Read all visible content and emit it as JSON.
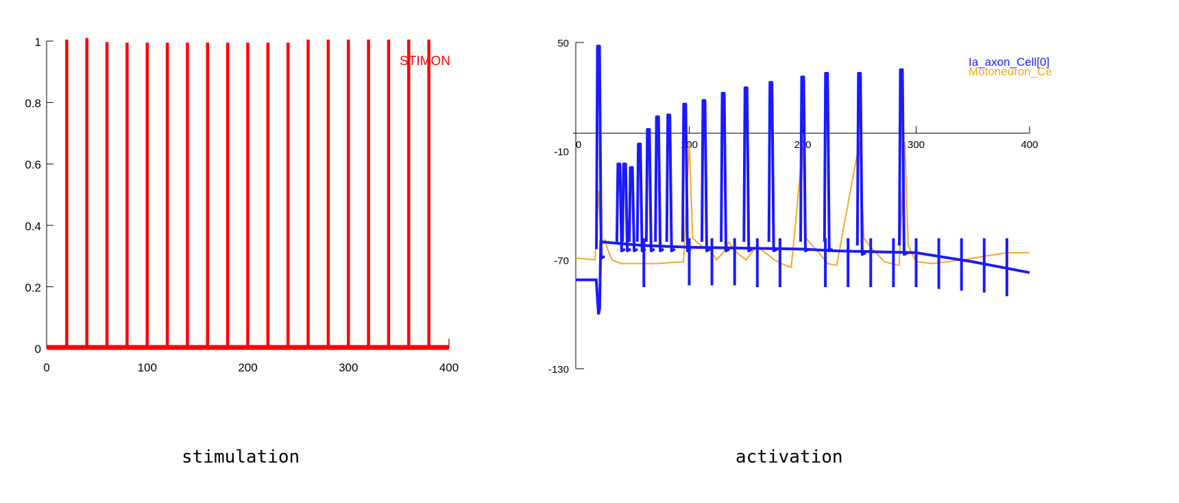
{
  "captions": {
    "left": "stimulation",
    "right": "activation"
  },
  "chart_data": [
    {
      "type": "line",
      "xlim": [
        0,
        400
      ],
      "ylim": [
        0,
        1
      ],
      "xticks": [
        0,
        100,
        200,
        300,
        400
      ],
      "xtick_labels": [
        "0",
        "100",
        "200",
        "300",
        "400"
      ],
      "yticks": [
        0,
        0.2,
        0.4,
        0.6,
        0.8,
        1
      ],
      "ytick_labels": [
        "0",
        "0.2",
        "0.4",
        "0.6",
        "0.8",
        "1"
      ],
      "grid": false,
      "legend": "top-right",
      "series": [
        {
          "name": "STIMON",
          "color": "#ff0000",
          "pulse_times": [
            20,
            40,
            60,
            80,
            100,
            120,
            140,
            160,
            180,
            200,
            220,
            240,
            260,
            280,
            300,
            320,
            340,
            360,
            380
          ],
          "pulse_heights": [
            1.005,
            1.01,
            0.997,
            0.995,
            0.995,
            0.995,
            0.995,
            0.995,
            0.995,
            0.995,
            0.995,
            0.995,
            1.005,
            1.005,
            1.005,
            1.005,
            1.005,
            1.005,
            1.005
          ]
        }
      ]
    },
    {
      "type": "line",
      "xlim": [
        0,
        400
      ],
      "ylim": [
        -130,
        50
      ],
      "xticks": [
        0,
        100,
        200,
        300,
        400
      ],
      "xtick_labels": [
        "0",
        "100",
        "200",
        "300",
        "400"
      ],
      "yticks": [
        50,
        -10,
        -70,
        -130
      ],
      "ytick_labels": [
        "50",
        "-10",
        "-70",
        "-130"
      ],
      "grid": false,
      "legend": "top-right",
      "series": [
        {
          "name": "Ia_axon_Cell[0]",
          "color": "#1a1aff",
          "baseline": [
            [
              0,
              -81
            ],
            [
              18,
              -81
            ],
            [
              20,
              -100
            ],
            [
              21,
              -97
            ],
            [
              22,
              -60
            ],
            [
              60,
              -62
            ],
            [
              100,
              -63
            ],
            [
              200,
              -64
            ],
            [
              230,
              -65
            ],
            [
              300,
              -66
            ],
            [
              350,
              -71
            ],
            [
              400,
              -77
            ]
          ],
          "big_spikes": [
            {
              "t": 20,
              "peak": 48,
              "trough": -68
            },
            {
              "t": 38,
              "peak": -17,
              "trough": -64
            },
            {
              "t": 43,
              "peak": -17,
              "trough": -64
            },
            {
              "t": 49,
              "peak": -19,
              "trough": -64
            },
            {
              "t": 56,
              "peak": -6,
              "trough": -64
            },
            {
              "t": 64,
              "peak": 2,
              "trough": -64
            },
            {
              "t": 72,
              "peak": 9,
              "trough": -64
            },
            {
              "t": 82,
              "peak": 10,
              "trough": -64
            },
            {
              "t": 96,
              "peak": 16,
              "trough": -64
            },
            {
              "t": 113,
              "peak": 18,
              "trough": -64
            },
            {
              "t": 130,
              "peak": 22,
              "trough": -64
            },
            {
              "t": 150,
              "peak": 25,
              "trough": -64
            },
            {
              "t": 172,
              "peak": 28,
              "trough": -64
            },
            {
              "t": 200,
              "peak": 31,
              "trough": -64
            },
            {
              "t": 221,
              "peak": 33,
              "trough": -64
            },
            {
              "t": 250,
              "peak": 33,
              "trough": -66
            },
            {
              "t": 287,
              "peak": 35,
              "trough": -66
            }
          ],
          "small_spikes": [
            {
              "t": 60,
              "top": -58,
              "bottom": -85
            },
            {
              "t": 100,
              "top": -58,
              "bottom": -84
            },
            {
              "t": 120,
              "top": -58,
              "bottom": -84
            },
            {
              "t": 140,
              "top": -58,
              "bottom": -84
            },
            {
              "t": 160,
              "top": -58,
              "bottom": -85
            },
            {
              "t": 180,
              "top": -58,
              "bottom": -85
            },
            {
              "t": 220,
              "top": -58,
              "bottom": -85
            },
            {
              "t": 240,
              "top": -58,
              "bottom": -85
            },
            {
              "t": 260,
              "top": -58,
              "bottom": -85
            },
            {
              "t": 280,
              "top": -58,
              "bottom": -85
            },
            {
              "t": 300,
              "top": -58,
              "bottom": -85
            },
            {
              "t": 320,
              "top": -58,
              "bottom": -86
            },
            {
              "t": 340,
              "top": -58,
              "bottom": -87
            },
            {
              "t": 360,
              "top": -58,
              "bottom": -88
            },
            {
              "t": 380,
              "top": -58,
              "bottom": -90
            }
          ]
        },
        {
          "name": "Motoneuron_Ce",
          "color": "#f5a623",
          "points": [
            [
              0,
              -69
            ],
            [
              10,
              -69.5
            ],
            [
              17,
              -70
            ],
            [
              20,
              -32
            ],
            [
              22,
              -58
            ],
            [
              24,
              -60
            ],
            [
              26,
              -59
            ],
            [
              28,
              -64
            ],
            [
              32,
              -70
            ],
            [
              40,
              -72
            ],
            [
              70,
              -72
            ],
            [
              95,
              -71
            ],
            [
              100,
              -5
            ],
            [
              103,
              -58
            ],
            [
              110,
              -62
            ],
            [
              118,
              -64
            ],
            [
              124,
              -70
            ],
            [
              130,
              -66
            ],
            [
              135,
              -60
            ],
            [
              140,
              -65
            ],
            [
              150,
              -70
            ],
            [
              160,
              -62
            ],
            [
              165,
              -65
            ],
            [
              175,
              -70
            ],
            [
              185,
              -73
            ],
            [
              190,
              -74
            ],
            [
              200,
              -8
            ],
            [
              203,
              -58
            ],
            [
              207,
              -61
            ],
            [
              213,
              -65
            ],
            [
              222,
              -72
            ],
            [
              230,
              -73
            ],
            [
              250,
              -5
            ],
            [
              254,
              -58
            ],
            [
              260,
              -63
            ],
            [
              272,
              -71
            ],
            [
              285,
              -73
            ],
            [
              290,
              -5
            ],
            [
              293,
              -62
            ],
            [
              300,
              -71
            ],
            [
              315,
              -72
            ],
            [
              340,
              -70
            ],
            [
              360,
              -68
            ],
            [
              380,
              -66
            ],
            [
              400,
              -66
            ]
          ]
        }
      ]
    }
  ]
}
